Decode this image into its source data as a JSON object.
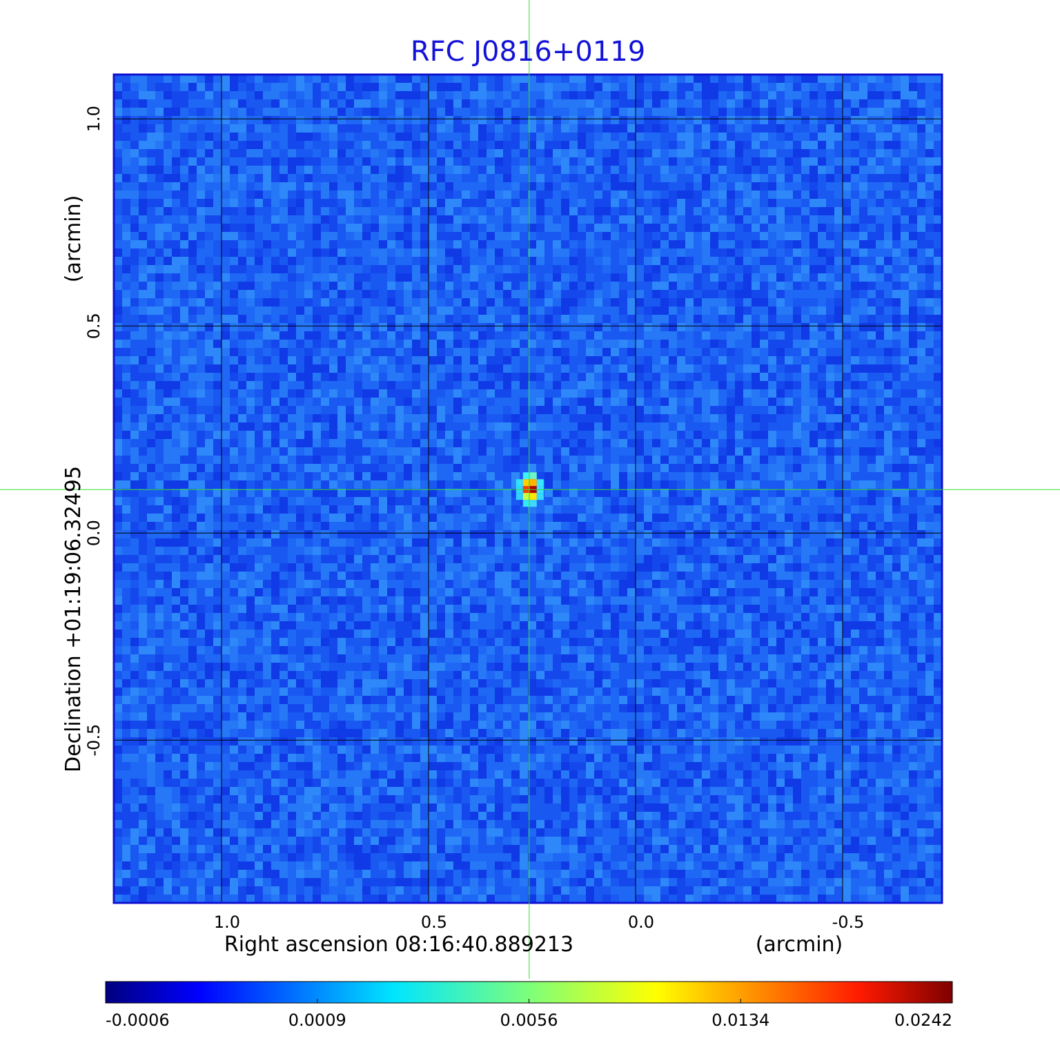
{
  "chart_data": {
    "type": "image",
    "title": "RFC J0816+0119",
    "x_label": "Right ascension  08:16:40.889213",
    "x_unit": "(arcmin)",
    "y_label": "Declination  +01:19:06.32495",
    "y_unit": "(arcmin)",
    "xlim": [
      1.26,
      -0.74
    ],
    "ylim": [
      -0.893,
      1.107
    ],
    "xticks": [
      {
        "value": 1,
        "label": "1.0"
      },
      0.5,
      {
        "value": 0,
        "label": "0.0"
      },
      -0.5
    ],
    "yticks": [
      {
        "value": 1,
        "label": "1.0"
      },
      0.5,
      {
        "value": 0,
        "label": "0.0"
      },
      -0.5
    ],
    "grid": true,
    "marker": {
      "x": 0.257,
      "y": 0.105,
      "color": "#33dd33"
    },
    "colormap": "jet",
    "colorbar_ticks": [
      -0.0006,
      0.0009,
      0.0056,
      0.0134,
      0.0242
    ]
  }
}
